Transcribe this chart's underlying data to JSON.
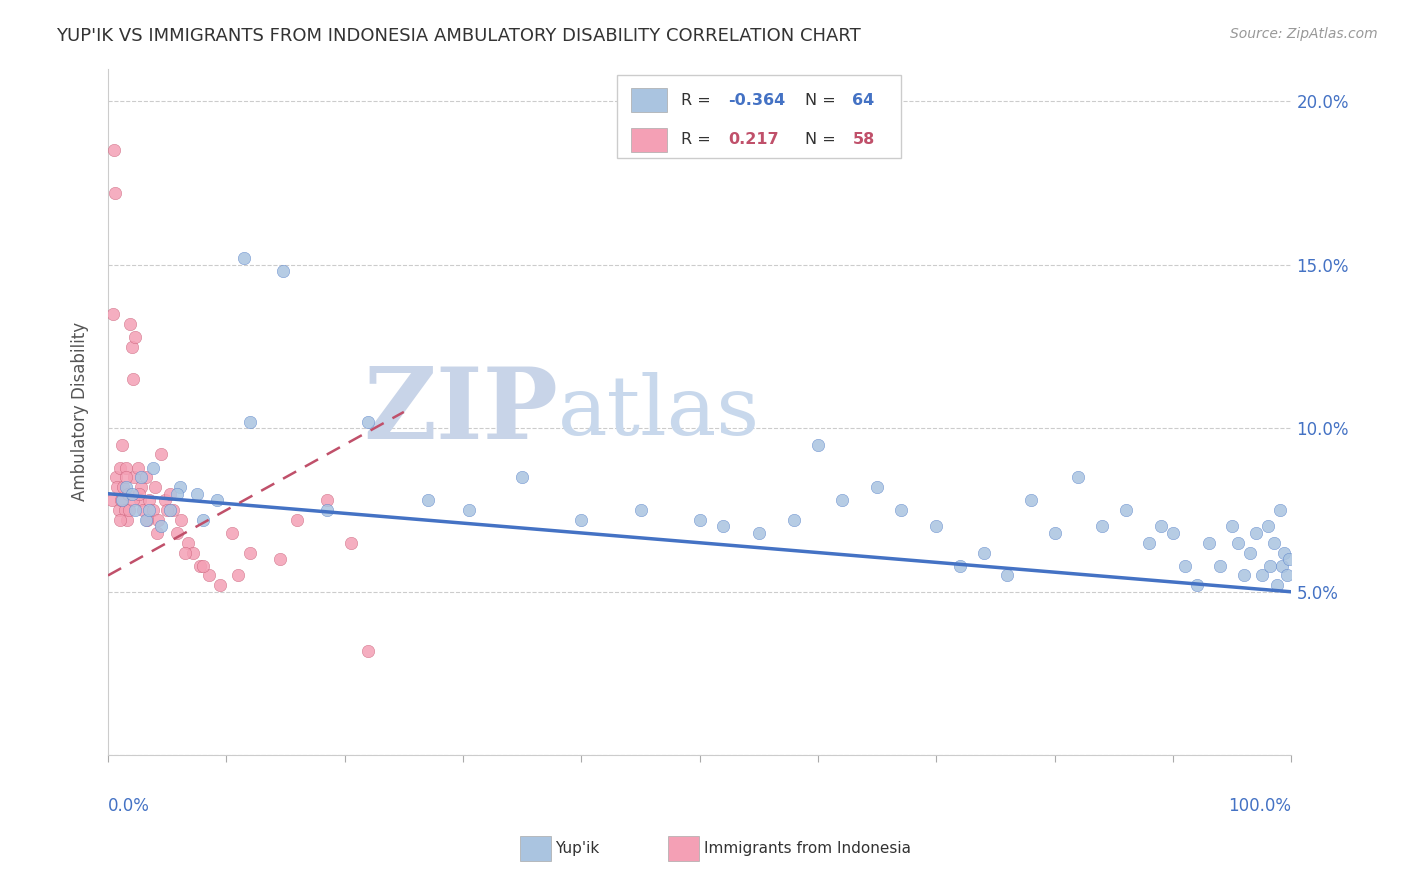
{
  "title": "YUP'IK VS IMMIGRANTS FROM INDONESIA AMBULATORY DISABILITY CORRELATION CHART",
  "source": "Source: ZipAtlas.com",
  "ylabel": "Ambulatory Disability",
  "xmin": 0.0,
  "xmax": 100.0,
  "ymin": 0.0,
  "ymax": 21.0,
  "yticks": [
    5.0,
    10.0,
    15.0,
    20.0
  ],
  "ytick_labels": [
    "5.0%",
    "10.0%",
    "15.0%",
    "20.0%"
  ],
  "color_blue": "#aac4e0",
  "color_pink": "#f4a0b5",
  "color_blue_line": "#4472c4",
  "color_pink_line": "#c0506a",
  "color_watermark_zip": "#c8d4e8",
  "color_watermark_atlas": "#c8d8ec",
  "blue_r": "-0.364",
  "blue_n": "64",
  "pink_r": "0.217",
  "pink_n": "58",
  "blue_scatter_x": [
    1.2,
    1.5,
    2.0,
    2.3,
    2.8,
    3.2,
    3.8,
    4.5,
    5.2,
    6.1,
    7.5,
    9.2,
    11.5,
    14.8,
    18.5,
    22.0,
    27.0,
    30.5,
    35.0,
    40.0,
    45.0,
    50.0,
    52.0,
    55.0,
    58.0,
    60.0,
    62.0,
    65.0,
    67.0,
    70.0,
    72.0,
    74.0,
    76.0,
    78.0,
    80.0,
    82.0,
    84.0,
    86.0,
    88.0,
    89.0,
    90.0,
    91.0,
    92.0,
    93.0,
    94.0,
    95.0,
    95.5,
    96.0,
    96.5,
    97.0,
    97.5,
    98.0,
    98.2,
    98.5,
    98.8,
    99.0,
    99.2,
    99.4,
    99.6,
    99.8,
    3.5,
    5.8,
    8.0,
    12.0
  ],
  "blue_scatter_y": [
    7.8,
    8.2,
    8.0,
    7.5,
    8.5,
    7.2,
    8.8,
    7.0,
    7.5,
    8.2,
    8.0,
    7.8,
    15.2,
    14.8,
    7.5,
    10.2,
    7.8,
    7.5,
    8.5,
    7.2,
    7.5,
    7.2,
    7.0,
    6.8,
    7.2,
    9.5,
    7.8,
    8.2,
    7.5,
    7.0,
    5.8,
    6.2,
    5.5,
    7.8,
    6.8,
    8.5,
    7.0,
    7.5,
    6.5,
    7.0,
    6.8,
    5.8,
    5.2,
    6.5,
    5.8,
    7.0,
    6.5,
    5.5,
    6.2,
    6.8,
    5.5,
    7.0,
    5.8,
    6.5,
    5.2,
    7.5,
    5.8,
    6.2,
    5.5,
    6.0,
    7.5,
    8.0,
    7.2,
    10.2
  ],
  "pink_scatter_x": [
    0.3,
    0.5,
    0.6,
    0.7,
    0.8,
    0.9,
    1.0,
    1.1,
    1.2,
    1.3,
    1.4,
    1.5,
    1.6,
    1.7,
    1.8,
    1.9,
    2.0,
    2.1,
    2.2,
    2.3,
    2.5,
    2.7,
    2.8,
    3.0,
    3.2,
    3.5,
    3.8,
    4.0,
    4.2,
    4.5,
    4.8,
    5.2,
    5.5,
    5.8,
    6.2,
    6.8,
    7.2,
    7.8,
    8.5,
    9.5,
    10.5,
    12.0,
    14.5,
    16.0,
    18.5,
    20.5,
    0.4,
    1.05,
    1.55,
    2.15,
    2.65,
    3.3,
    4.1,
    5.0,
    6.5,
    8.0,
    11.0,
    22.0
  ],
  "pink_scatter_y": [
    7.8,
    18.5,
    17.2,
    8.5,
    8.2,
    7.5,
    8.8,
    7.8,
    9.5,
    8.2,
    7.5,
    8.8,
    7.2,
    8.0,
    7.5,
    13.2,
    12.5,
    11.5,
    8.5,
    12.8,
    8.8,
    7.8,
    8.2,
    7.5,
    8.5,
    7.8,
    7.5,
    8.2,
    7.2,
    9.2,
    7.8,
    8.0,
    7.5,
    6.8,
    7.2,
    6.5,
    6.2,
    5.8,
    5.5,
    5.2,
    6.8,
    6.2,
    6.0,
    7.2,
    7.8,
    6.5,
    13.5,
    7.2,
    8.5,
    7.8,
    8.0,
    7.2,
    6.8,
    7.5,
    6.2,
    5.8,
    5.5,
    3.2
  ],
  "blue_line_x": [
    0.0,
    100.0
  ],
  "blue_line_y": [
    8.0,
    5.0
  ],
  "pink_line_x": [
    0.0,
    25.0
  ],
  "pink_line_y": [
    5.5,
    10.5
  ]
}
